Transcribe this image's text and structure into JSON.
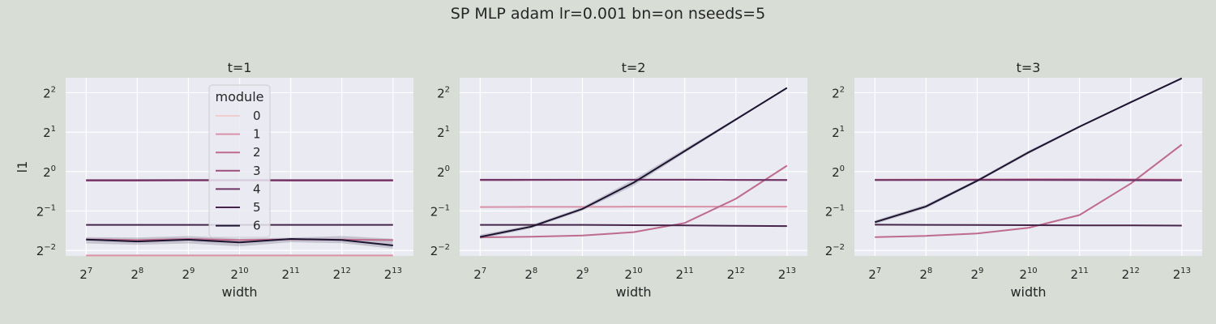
{
  "figure": {
    "suptitle": "SP MLP adam lr=0.001 bn=on nseeds=5",
    "background": "#d8ddd6",
    "axes_face": "#eaeaf2"
  },
  "legend": {
    "title": "module",
    "placement": "upper-center of first panel",
    "entries": [
      "0",
      "1",
      "2",
      "3",
      "4",
      "5",
      "6"
    ]
  },
  "chart_data": [
    {
      "type": "line",
      "title": "t=1",
      "xlabel": "width",
      "ylabel": "l1",
      "xscale": "log2",
      "yscale": "log2",
      "x": [
        128,
        256,
        512,
        1024,
        2048,
        4096,
        8192
      ],
      "x_tick_labels": [
        "2^7",
        "2^8",
        "2^9",
        "2^10",
        "2^11",
        "2^12",
        "2^13"
      ],
      "y_ticks": [
        0.25,
        0.5,
        1,
        2,
        4
      ],
      "y_tick_labels": [
        "2^-2",
        "2^-1",
        "2^0",
        "2^1",
        "2^2"
      ],
      "xlim": [
        97,
        10800
      ],
      "ylim": [
        0.227,
        5.2
      ],
      "grid": true,
      "legend": true,
      "series": [
        {
          "name": "0",
          "color": "#f0cdcf",
          "values": [
            0.229,
            0.229,
            0.229,
            0.229,
            0.229,
            0.229,
            0.229
          ]
        },
        {
          "name": "1",
          "color": "#d993a9",
          "values": [
            0.229,
            0.229,
            0.229,
            0.229,
            0.229,
            0.229,
            0.229
          ]
        },
        {
          "name": "2",
          "color": "#be6b8d",
          "values": [
            0.304,
            0.3,
            0.306,
            0.3,
            0.304,
            0.302,
            0.3
          ]
        },
        {
          "name": "3",
          "color": "#9c4f7f",
          "values": [
            0.853,
            0.853,
            0.855,
            0.855,
            0.853,
            0.853,
            0.853
          ]
        },
        {
          "name": "4",
          "color": "#6f3466",
          "values": [
            0.86,
            0.86,
            0.862,
            0.862,
            0.86,
            0.86,
            0.86
          ]
        },
        {
          "name": "5",
          "color": "#47254b",
          "values": [
            0.392,
            0.392,
            0.392,
            0.392,
            0.392,
            0.392,
            0.392
          ]
        },
        {
          "name": "6",
          "color": "#1e1431",
          "values": [
            0.303,
            0.293,
            0.302,
            0.288,
            0.306,
            0.301,
            0.273
          ]
        }
      ],
      "band": {
        "series": "6",
        "lower": [
          0.283,
          0.276,
          0.283,
          0.268,
          0.289,
          0.284,
          0.258
        ],
        "upper": [
          0.316,
          0.314,
          0.322,
          0.308,
          0.313,
          0.322,
          0.307
        ]
      }
    },
    {
      "type": "line",
      "title": "t=2",
      "xlabel": "width",
      "ylabel": "",
      "xscale": "log2",
      "yscale": "log2",
      "x": [
        128,
        256,
        512,
        1024,
        2048,
        4096,
        8192
      ],
      "x_tick_labels": [
        "2^7",
        "2^8",
        "2^9",
        "2^10",
        "2^11",
        "2^12",
        "2^13"
      ],
      "y_ticks": [
        0.25,
        0.5,
        1,
        2,
        4
      ],
      "y_tick_labels": [
        "2^-2",
        "2^-1",
        "2^0",
        "2^1",
        "2^2"
      ],
      "xlim": [
        97,
        10800
      ],
      "ylim": [
        0.227,
        5.2
      ],
      "grid": true,
      "legend": false,
      "series": [
        {
          "name": "0",
          "color": "#f0cdcf",
          "values": [
            0.536,
            0.538,
            0.538,
            0.54,
            0.54,
            0.54,
            0.54
          ]
        },
        {
          "name": "1",
          "color": "#d993a9",
          "values": [
            0.536,
            0.538,
            0.538,
            0.54,
            0.54,
            0.54,
            0.54
          ]
        },
        {
          "name": "2",
          "color": "#be6b8d",
          "values": [
            0.315,
            0.318,
            0.325,
            0.345,
            0.405,
            0.62,
            1.11
          ]
        },
        {
          "name": "3",
          "color": "#9c4f7f",
          "values": [
            0.86,
            0.862,
            0.864,
            0.866,
            0.866,
            0.864,
            0.862
          ]
        },
        {
          "name": "4",
          "color": "#6f3466",
          "values": [
            0.866,
            0.866,
            0.866,
            0.866,
            0.866,
            0.864,
            0.862
          ]
        },
        {
          "name": "5",
          "color": "#47254b",
          "values": [
            0.392,
            0.392,
            0.392,
            0.39,
            0.388,
            0.386,
            0.384
          ]
        },
        {
          "name": "6",
          "color": "#1e1431",
          "values": [
            0.317,
            0.38,
            0.519,
            0.823,
            1.435,
            2.5,
            4.35
          ]
        }
      ],
      "band": {
        "series": "6",
        "lower": [
          0.306,
          0.369,
          0.503,
          0.78,
          1.39,
          2.45,
          4.3
        ],
        "upper": [
          0.33,
          0.391,
          0.536,
          0.87,
          1.49,
          2.55,
          4.4
        ]
      }
    },
    {
      "type": "line",
      "title": "t=3",
      "xlabel": "width",
      "ylabel": "",
      "xscale": "log2",
      "yscale": "log2",
      "x": [
        128,
        256,
        512,
        1024,
        2048,
        4096,
        8192
      ],
      "x_tick_labels": [
        "2^7",
        "2^8",
        "2^9",
        "2^10",
        "2^11",
        "2^12",
        "2^13"
      ],
      "y_ticks": [
        0.25,
        0.5,
        1,
        2,
        4
      ],
      "y_tick_labels": [
        "2^-2",
        "2^-1",
        "2^0",
        "2^1",
        "2^2"
      ],
      "xlim": [
        97,
        10800
      ],
      "ylim": [
        0.227,
        5.2
      ],
      "grid": true,
      "legend": false,
      "series": [
        {
          "name": "0",
          "color": "#f0cdcf",
          "values": [
            0.87,
            0.872,
            0.874,
            0.876,
            0.876,
            0.874,
            0.872
          ]
        },
        {
          "name": "1",
          "color": "#d993a9",
          "values": [
            0.866,
            0.868,
            0.87,
            0.872,
            0.872,
            0.87,
            0.868
          ]
        },
        {
          "name": "2",
          "color": "#be6b8d",
          "values": [
            0.316,
            0.323,
            0.337,
            0.372,
            0.466,
            0.809,
            1.61
          ]
        },
        {
          "name": "3",
          "color": "#9c4f7f",
          "values": [
            0.862,
            0.864,
            0.866,
            0.868,
            0.868,
            0.866,
            0.864
          ]
        },
        {
          "name": "4",
          "color": "#6f3466",
          "values": [
            0.862,
            0.862,
            0.862,
            0.862,
            0.86,
            0.858,
            0.856
          ]
        },
        {
          "name": "5",
          "color": "#47254b",
          "values": [
            0.393,
            0.392,
            0.391,
            0.39,
            0.389,
            0.388,
            0.387
          ]
        },
        {
          "name": "6",
          "color": "#1e1431",
          "values": [
            0.411,
            0.542,
            0.851,
            1.4,
            2.2,
            3.38,
            5.15
          ]
        }
      ],
      "band": {
        "series": "6",
        "lower": [
          0.398,
          0.525,
          0.83,
          1.36,
          2.16,
          3.33,
          5.1
        ],
        "upper": [
          0.424,
          0.56,
          0.872,
          1.44,
          2.24,
          3.43,
          5.2
        ]
      }
    }
  ]
}
